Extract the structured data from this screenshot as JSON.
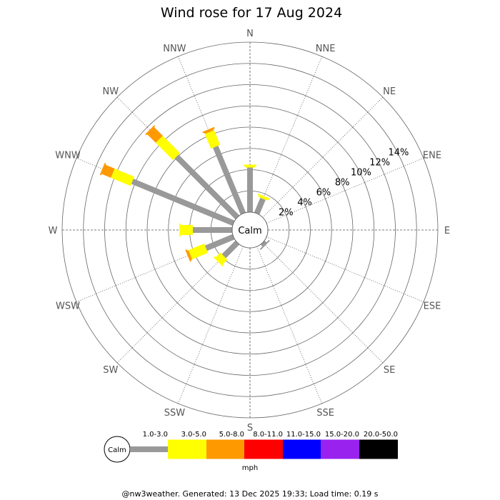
{
  "title": "Wind rose for 17 Aug 2024",
  "calm_label": "Calm",
  "unit_label": "mph",
  "footer": "@nw3weather. Generated: 13 Dec 2025 19:33; Load time: 0.19 s",
  "colors": {
    "background": "#ffffff",
    "ring": "#666666",
    "spoke": "#555555"
  },
  "chart_data": {
    "type": "windrose",
    "title": "Wind rose for 17 Aug 2024",
    "directions": [
      "N",
      "NNE",
      "NE",
      "ENE",
      "E",
      "ESE",
      "SE",
      "SSE",
      "S",
      "SSW",
      "SW",
      "WSW",
      "W",
      "WNW",
      "NW",
      "NNW"
    ],
    "radial_ticks": [
      "2%",
      "4%",
      "6%",
      "8%",
      "10%",
      "12%",
      "14%"
    ],
    "radial_tick_values": [
      2,
      4,
      6,
      8,
      10,
      12,
      14
    ],
    "radial_max": 16,
    "speed_bins": [
      {
        "label": "1.0-3.0",
        "color": "#999999"
      },
      {
        "label": "3.0-5.0",
        "color": "#ffff00"
      },
      {
        "label": "5.0-8.0",
        "color": "#ff9900"
      },
      {
        "label": "8.0-11.0",
        "color": "#ff0000"
      },
      {
        "label": "11.0-15.0",
        "color": "#0000ff"
      },
      {
        "label": "15.0-20.0",
        "color": "#9922ee"
      },
      {
        "label": "20.0-50.0",
        "color": "#000000"
      }
    ],
    "series": [
      {
        "direction": "N",
        "segments": [
          4.2,
          0.2
        ]
      },
      {
        "direction": "NNE",
        "segments": [
          1.5,
          0.2
        ]
      },
      {
        "direction": "SE",
        "segments": [
          0.3
        ]
      },
      {
        "direction": "SW",
        "segments": [
          1.8,
          0.7
        ]
      },
      {
        "direction": "WSW",
        "segments": [
          2.8,
          1.6,
          0.2
        ]
      },
      {
        "direction": "W",
        "segments": [
          3.7,
          1.2
        ]
      },
      {
        "direction": "WNW",
        "segments": [
          10.3,
          2.0,
          1.0
        ]
      },
      {
        "direction": "NW",
        "segments": [
          8.1,
          2.3,
          1.2
        ]
      },
      {
        "direction": "NNW",
        "segments": [
          6.8,
          1.5,
          0.2
        ]
      }
    ]
  }
}
